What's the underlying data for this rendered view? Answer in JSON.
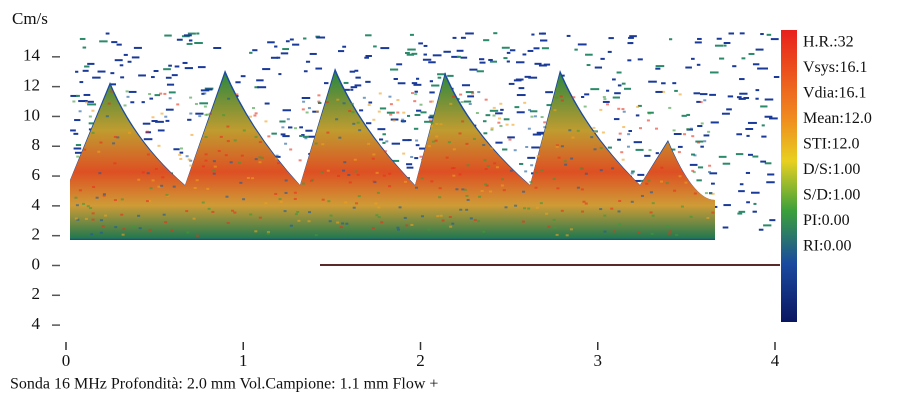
{
  "chart_data": {
    "type": "spectrogram",
    "y_label": "Cm/s",
    "xlim": [
      0,
      4
    ],
    "xticks": [
      0,
      1,
      2,
      3,
      4
    ],
    "ylim": [
      -5,
      15.8
    ],
    "yticks": [
      14,
      12,
      10,
      8,
      6,
      4,
      2,
      0,
      {
        "value": -2,
        "label": "2"
      },
      {
        "value": -4,
        "label": "4"
      }
    ],
    "measurements": [
      "H.R.:32",
      "Vsys:16.1",
      "Vdia:16.1",
      "Mean:12.0",
      "STI:12.0",
      "D/S:1.00",
      "S/D:1.00",
      "PI:0.00",
      "RI:0.00"
    ],
    "footer": "Sonda 16 MHz  Profondità: 2.0  mm  Vol.Campione: 1.1 mm  Flow +"
  }
}
